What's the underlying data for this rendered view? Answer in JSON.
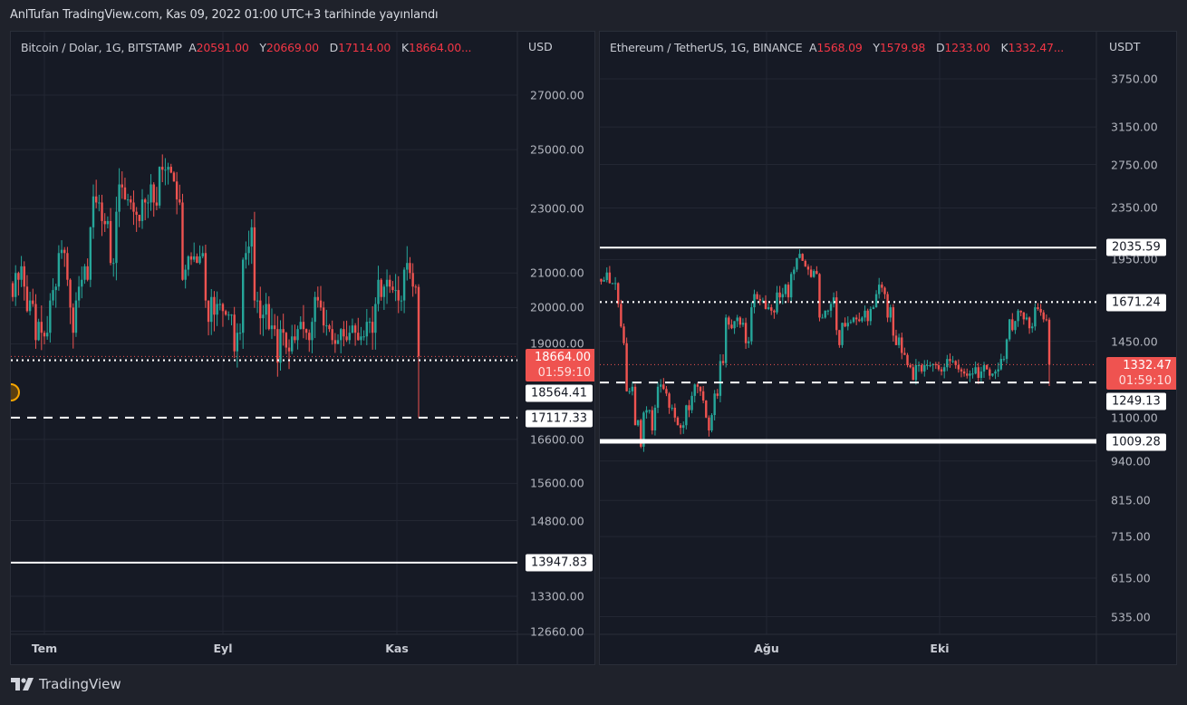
{
  "published": "AnlTufan TradingView.com, Kas 09, 2022 01:00 UTC+3 tarihinde yayınlandı",
  "brand": "TradingView",
  "colors": {
    "up": "#26a69a",
    "down": "#ef5350",
    "line": "#ffffff",
    "accent": "#f23645"
  },
  "chart_data": [
    {
      "type": "candlestick",
      "symbol": "Bitcoin / Dolar, 1G, BITSTAMP",
      "ohlc_labels": [
        {
          "k": "A",
          "v": "20591.00"
        },
        {
          "k": "Y",
          "v": "20669.00"
        },
        {
          "k": "D",
          "v": "17114.00"
        },
        {
          "k": "K",
          "v": "18664.00..."
        }
      ],
      "currency": "USD",
      "scale": "log",
      "y_ticks": [
        "27000.00",
        "25000.00",
        "23000.00",
        "21000.00",
        "20000.00",
        "19000.00",
        "16600.00",
        "15600.00",
        "14800.00",
        "13300.00",
        "12660.00"
      ],
      "x_ticks": [
        "Tem",
        "Eyl",
        "Kas"
      ],
      "last": {
        "open": 20591.0,
        "high": 20669.0,
        "low": 17114.0,
        "close": 18664.0,
        "price_label": "18664.00",
        "countdown": "01:59:10"
      },
      "closes": [
        20700,
        20300,
        21000,
        20800,
        21200,
        20600,
        19900,
        20200,
        20100,
        19100,
        19600,
        19300,
        19200,
        19300,
        20200,
        20500,
        20600,
        21600,
        21700,
        21600,
        20800,
        20000,
        19300,
        20200,
        20600,
        20800,
        21200,
        20800,
        22400,
        23400,
        23200,
        23200,
        22600,
        22500,
        22600,
        21300,
        21300,
        22900,
        23800,
        23700,
        23300,
        23300,
        23200,
        22900,
        22800,
        22600,
        23300,
        23200,
        23200,
        23800,
        23200,
        23100,
        24400,
        24300,
        24300,
        24400,
        24200,
        23900,
        23300,
        23200,
        20800,
        21100,
        21500,
        21400,
        21500,
        21300,
        21500,
        21600,
        20200,
        19600,
        20300,
        19800,
        20100,
        20100,
        19900,
        19800,
        19800,
        19800,
        18800,
        19300,
        19300,
        21400,
        21600,
        21800,
        22400,
        20200,
        20200,
        19700,
        19800,
        20100,
        19400,
        19500,
        19400,
        18500,
        19400,
        19300,
        18900,
        18800,
        19200,
        19100,
        19400,
        19600,
        19400,
        19300,
        19100,
        19600,
        20300,
        20200,
        20000,
        19500,
        19500,
        19400,
        19100,
        19000,
        19100,
        19400,
        19200,
        19100,
        19300,
        19500,
        19300,
        19100,
        19200,
        19200,
        19600,
        19600,
        19300,
        20100,
        20800,
        20300,
        20600,
        20800,
        20600,
        20500,
        20500,
        20200,
        20200,
        21100,
        21300,
        21000,
        20600,
        20591
      ],
      "levels": [
        {
          "price": 18564.41,
          "label": "18564.41",
          "style": "dotted"
        },
        {
          "price": 17117.33,
          "label": "17117.33",
          "style": "dashed"
        },
        {
          "price": 13947.83,
          "label": "13947.83",
          "style": "solid"
        }
      ],
      "alert_icon": "alert-clock-icon"
    },
    {
      "type": "candlestick",
      "symbol": "Ethereum / TetherUS, 1G, BINANCE",
      "ohlc_labels": [
        {
          "k": "A",
          "v": "1568.09"
        },
        {
          "k": "Y",
          "v": "1579.98"
        },
        {
          "k": "D",
          "v": "1233.00"
        },
        {
          "k": "K",
          "v": "1332.47..."
        }
      ],
      "currency": "USDT",
      "scale": "log",
      "y_ticks": [
        "3750.00",
        "3150.00",
        "2750.00",
        "2350.00",
        "1950.00",
        "1450.00",
        "1100.00",
        "940.00",
        "815.00",
        "715.00",
        "615.00",
        "535.00"
      ],
      "x_ticks": [
        "Ağu",
        "Eki"
      ],
      "last": {
        "open": 1568.09,
        "high": 1579.98,
        "low": 1233.0,
        "close": 1332.47,
        "price_label": "1332.47",
        "countdown": "01:59:10"
      },
      "closes": [
        1800,
        1810,
        1860,
        1790,
        1790,
        1790,
        1660,
        1530,
        1440,
        1210,
        1210,
        1230,
        1070,
        1090,
        990,
        1120,
        1130,
        1130,
        1050,
        1140,
        1230,
        1240,
        1220,
        1200,
        1140,
        1140,
        1100,
        1070,
        1060,
        1070,
        1150,
        1130,
        1190,
        1240,
        1230,
        1210,
        1170,
        1100,
        1050,
        1110,
        1200,
        1190,
        1350,
        1340,
        1580,
        1540,
        1520,
        1560,
        1580,
        1540,
        1550,
        1440,
        1450,
        1640,
        1720,
        1690,
        1680,
        1680,
        1630,
        1640,
        1620,
        1610,
        1730,
        1700,
        1720,
        1780,
        1700,
        1850,
        1880,
        1960,
        1990,
        1940,
        1900,
        1880,
        1830,
        1870,
        1850,
        1580,
        1580,
        1620,
        1620,
        1660,
        1700,
        1510,
        1430,
        1550,
        1530,
        1550,
        1555,
        1580,
        1570,
        1560,
        1580,
        1620,
        1560,
        1630,
        1640,
        1720,
        1780,
        1760,
        1720,
        1580,
        1640,
        1480,
        1430,
        1470,
        1390,
        1380,
        1330,
        1320,
        1260,
        1330,
        1330,
        1300,
        1330,
        1330,
        1330,
        1335,
        1330,
        1310,
        1300,
        1320,
        1360,
        1350,
        1350,
        1330,
        1310,
        1300,
        1290,
        1280,
        1290,
        1290,
        1320,
        1270,
        1300,
        1330,
        1310,
        1280,
        1290,
        1300,
        1310,
        1360,
        1360,
        1460,
        1570,
        1510,
        1560,
        1620,
        1610,
        1570,
        1580,
        1520,
        1530,
        1640,
        1630,
        1610,
        1570,
        1568.09
      ],
      "levels": [
        {
          "price": 2035.59,
          "label": "2035.59",
          "style": "solid"
        },
        {
          "price": 1671.24,
          "label": "1671.24",
          "style": "dotted"
        },
        {
          "price": 1249.13,
          "label": "1249.13",
          "style": "dashed"
        },
        {
          "price": 1009.28,
          "label": "1009.28",
          "style": "solid-thick"
        }
      ]
    }
  ]
}
